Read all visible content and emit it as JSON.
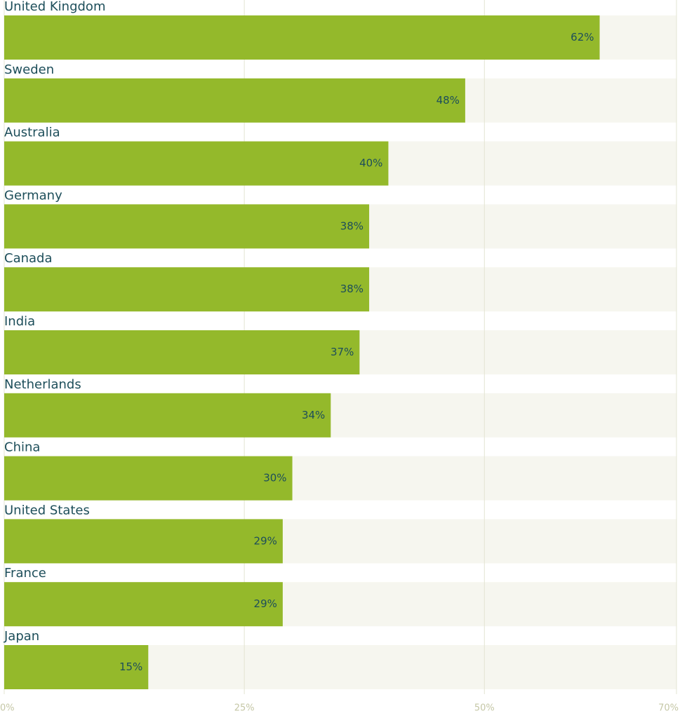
{
  "chart_data": {
    "type": "bar",
    "orientation": "horizontal",
    "categories": [
      "United Kingdom",
      "Sweden",
      "Australia",
      "Germany",
      "Canada",
      "India",
      "Netherlands",
      "China",
      "United States",
      "France",
      "Japan"
    ],
    "values": [
      62,
      48,
      40,
      38,
      38,
      37,
      34,
      30,
      29,
      29,
      15
    ],
    "value_labels": [
      "62%",
      "48%",
      "40%",
      "38%",
      "38%",
      "37%",
      "34%",
      "30%",
      "29%",
      "29%",
      "15%"
    ],
    "color": "#94b92b",
    "xlim": [
      0,
      70
    ],
    "xticks": [
      {
        "value": 0,
        "label": "0%"
      },
      {
        "value": 25,
        "label": "25%"
      },
      {
        "value": 50,
        "label": "50%"
      },
      {
        "value": 70,
        "label": "70%"
      }
    ],
    "grid": true
  }
}
